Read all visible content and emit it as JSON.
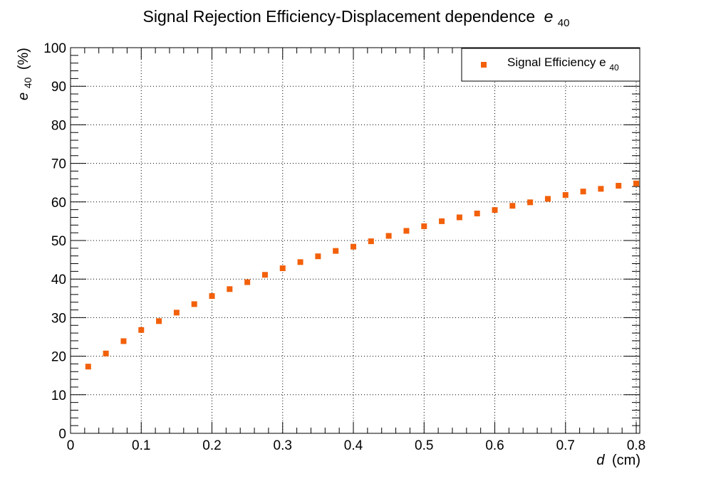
{
  "chart_data": {
    "type": "scatter",
    "title": "Signal Rejection Efficiency-Displacement dependence",
    "title_symbol": "e",
    "title_subscript": "40",
    "xlabel_symbol": "d",
    "xlabel_unit": "(cm)",
    "ylabel_symbol": "e",
    "ylabel_subscript": "40",
    "ylabel_unit": "(%)",
    "xlim": [
      0,
      0.805
    ],
    "ylim": [
      0,
      100
    ],
    "x_ticks": [
      "0",
      "0.1",
      "0.2",
      "0.3",
      "0.4",
      "0.5",
      "0.6",
      "0.7",
      "0.8"
    ],
    "y_ticks": [
      "0",
      "10",
      "20",
      "30",
      "40",
      "50",
      "60",
      "70",
      "80",
      "90",
      "100"
    ],
    "grid": true,
    "legend_position": "top-right",
    "marker_color": "#f2600a",
    "series": [
      {
        "name": "Signal Efficiency e",
        "name_subscript": "40",
        "x": [
          0.025,
          0.05,
          0.075,
          0.1,
          0.125,
          0.15,
          0.175,
          0.2,
          0.225,
          0.25,
          0.275,
          0.3,
          0.325,
          0.35,
          0.375,
          0.4,
          0.425,
          0.45,
          0.475,
          0.5,
          0.525,
          0.55,
          0.575,
          0.6,
          0.625,
          0.65,
          0.675,
          0.7,
          0.725,
          0.75,
          0.775,
          0.8
        ],
        "y": [
          17.3,
          20.7,
          23.9,
          26.8,
          29.1,
          31.3,
          33.5,
          35.6,
          37.4,
          39.2,
          41.1,
          42.8,
          44.4,
          45.9,
          47.3,
          48.4,
          49.8,
          51.2,
          52.5,
          53.7,
          55.0,
          56.0,
          57.0,
          57.9,
          59.0,
          59.9,
          60.8,
          61.8,
          62.7,
          63.4,
          64.2,
          64.8
        ]
      }
    ]
  }
}
